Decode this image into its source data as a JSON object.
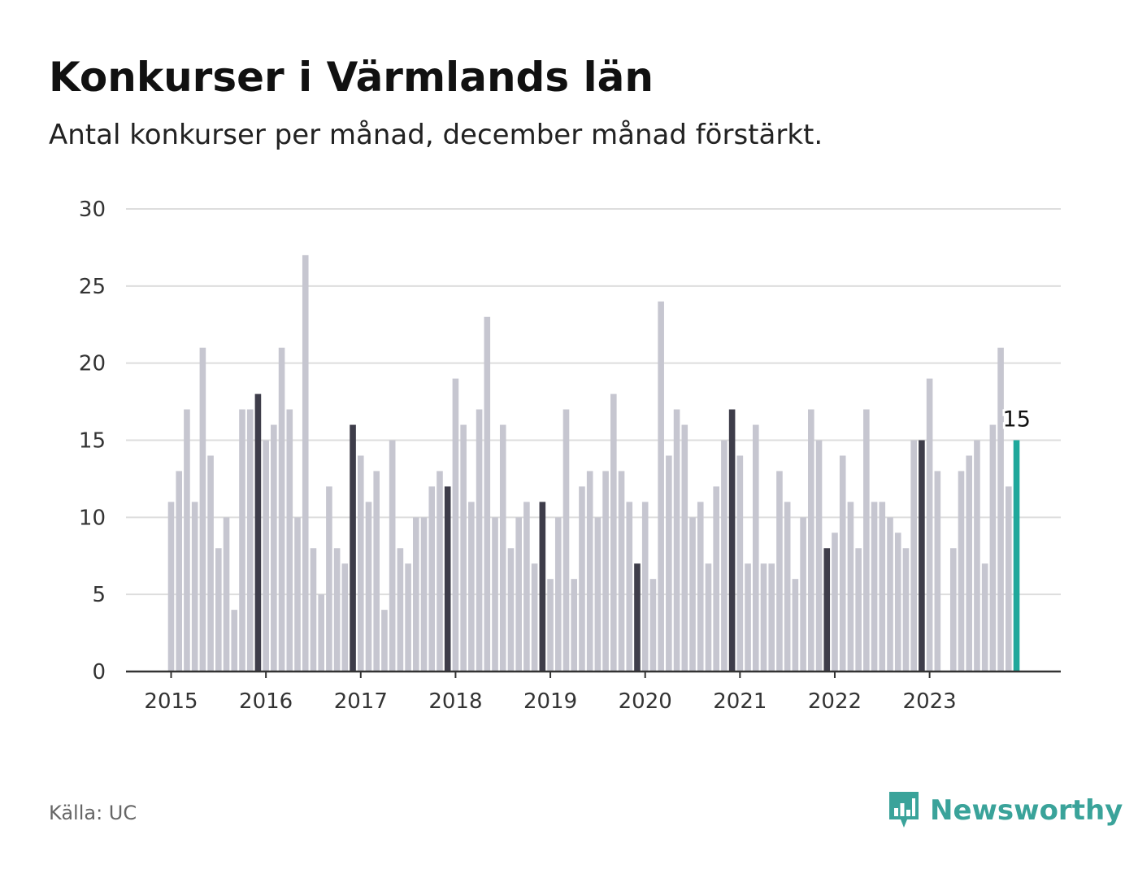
{
  "header": {
    "title": "Konkurser i Värmlands län",
    "subtitle": "Antal konkurser per månad, december månad förstärkt."
  },
  "footer": {
    "source": "Källa: UC",
    "brand": "Newsworthy"
  },
  "colors": {
    "bar": "#c6c6d0",
    "december": "#3e3d4a",
    "highlight": "#1fa89b",
    "grid": "#dddddd",
    "axis": "#333333",
    "brand": "#3aa39a"
  },
  "chart_data": {
    "type": "bar",
    "title": "Konkurser i Värmlands län",
    "subtitle": "Antal konkurser per månad, december månad förstärkt.",
    "xlabel": "",
    "ylabel": "",
    "ylim": [
      0,
      30
    ],
    "yticks": [
      0,
      5,
      10,
      15,
      20,
      25,
      30
    ],
    "xticks": [
      "2015",
      "2016",
      "2017",
      "2018",
      "2019",
      "2020",
      "2021",
      "2022",
      "2023"
    ],
    "start": "2015-01",
    "grid": true,
    "values": [
      11,
      13,
      17,
      11,
      21,
      14,
      8,
      10,
      4,
      17,
      17,
      18,
      15,
      16,
      21,
      17,
      10,
      27,
      8,
      5,
      12,
      8,
      7,
      16,
      14,
      11,
      13,
      4,
      15,
      8,
      7,
      10,
      10,
      12,
      13,
      12,
      19,
      16,
      11,
      17,
      23,
      10,
      16,
      8,
      10,
      11,
      7,
      11,
      6,
      10,
      17,
      6,
      12,
      13,
      10,
      13,
      18,
      13,
      11,
      7,
      11,
      6,
      24,
      14,
      17,
      16,
      10,
      11,
      7,
      12,
      15,
      17,
      14,
      7,
      16,
      7,
      7,
      13,
      11,
      6,
      10,
      17,
      15,
      8,
      9,
      14,
      11,
      8,
      17,
      11,
      11,
      10,
      9,
      8,
      15,
      15,
      19,
      13,
      0,
      8,
      13,
      14,
      15,
      7,
      16,
      21,
      12,
      15
    ],
    "highlight_label": "15"
  }
}
